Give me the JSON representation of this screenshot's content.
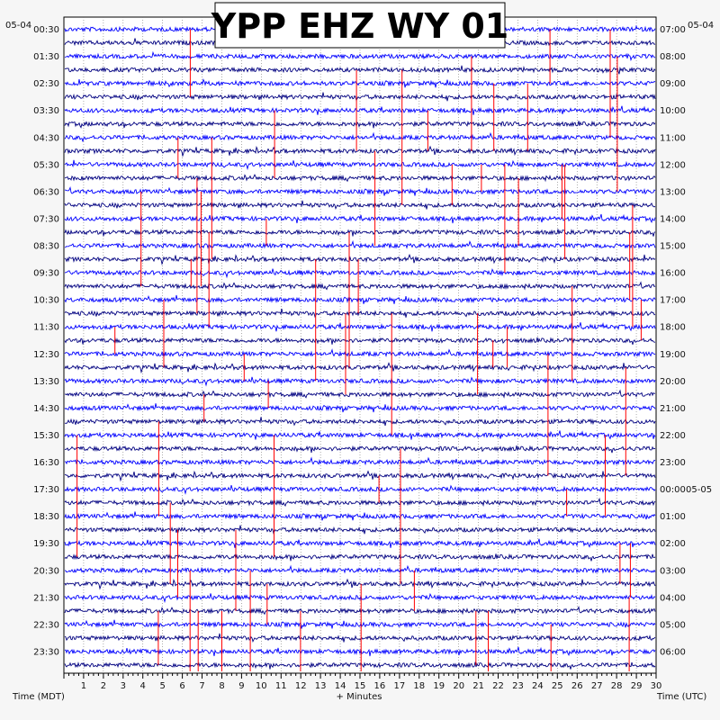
{
  "chart_data": {
    "type": "line",
    "title": "YPP EHZ WY 01",
    "left_date": "05-04",
    "right_date": "05-04",
    "right_date_change": "05-05",
    "left_times": [
      "00:30",
      "01:30",
      "02:30",
      "03:30",
      "04:30",
      "05:30",
      "06:30",
      "07:30",
      "08:30",
      "09:30",
      "10:30",
      "11:30",
      "12:30",
      "13:30",
      "14:30",
      "15:30",
      "16:30",
      "17:30",
      "18:30",
      "19:30",
      "20:30",
      "21:30",
      "22:30",
      "23:30"
    ],
    "right_times": [
      "07:00",
      "08:00",
      "09:00",
      "10:00",
      "11:00",
      "12:00",
      "13:00",
      "14:00",
      "15:00",
      "16:00",
      "17:00",
      "18:00",
      "19:00",
      "20:00",
      "21:00",
      "22:00",
      "23:00",
      "00:00",
      "01:00",
      "02:00",
      "03:00",
      "04:00",
      "05:00",
      "06:00"
    ],
    "x_ticks": [
      "1",
      "2",
      "3",
      "4",
      "5",
      "6",
      "7",
      "8",
      "9",
      "10",
      "11",
      "12",
      "13",
      "14",
      "15",
      "16",
      "17",
      "18",
      "19",
      "20",
      "21",
      "22",
      "23",
      "24",
      "25",
      "26",
      "27",
      "28",
      "29",
      "30"
    ],
    "xlim": [
      0,
      30
    ],
    "xlabel": "+ Minutes",
    "left_axis_label": "Time (MDT)",
    "right_axis_label": "Time (UTC)",
    "trace_count": 48,
    "trace_colors": [
      "#0000ff",
      "#000080"
    ],
    "event_color": "#ff0000"
  }
}
